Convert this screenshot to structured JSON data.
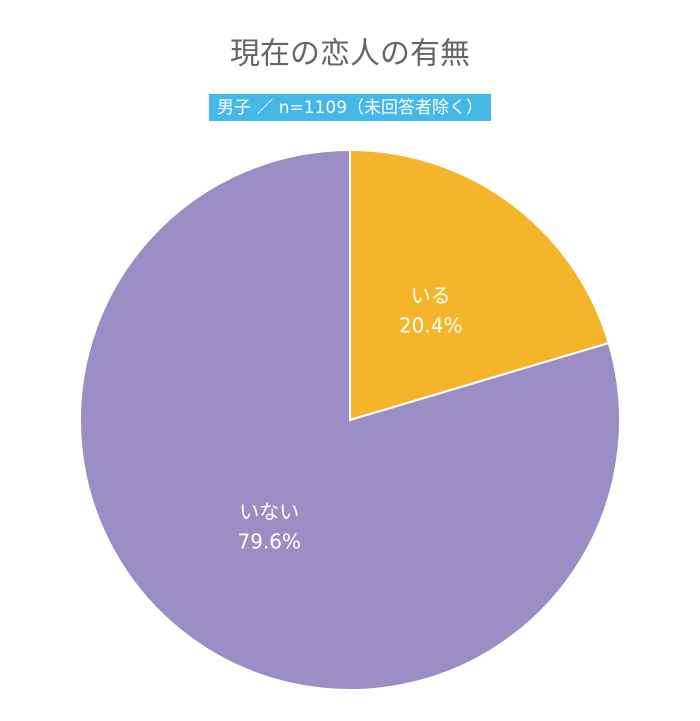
{
  "chart_data": {
    "type": "pie",
    "title": "現在の恋人の有無",
    "subtitle": "男子 ／ n=1109（未回答者除く）",
    "categories": [
      "いる",
      "いない"
    ],
    "values": [
      20.4,
      79.6
    ],
    "value_labels": [
      "20.4%",
      "79.6%"
    ],
    "colors": [
      "#f5b52a",
      "#9a8ec4"
    ],
    "subtitle_color": "#45b8e8"
  }
}
